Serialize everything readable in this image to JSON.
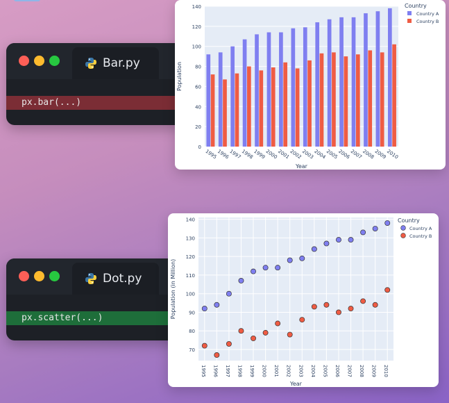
{
  "windows": [
    {
      "tab_title": "Bar.py",
      "code": "px.bar(...)",
      "icon": "python-icon"
    },
    {
      "tab_title": "Dot.py",
      "code": "px.scatter(...)",
      "icon": "python-icon"
    }
  ],
  "colors": {
    "country_a": "#7f7ff0",
    "country_b": "#ef5c44",
    "plot_bg": "#e5ecf6",
    "code_red_bg": "#7b2d35",
    "code_green_bg": "#1e6e3a"
  },
  "chart_data": [
    {
      "type": "bar",
      "title": "",
      "xlabel": "Year",
      "ylabel": "Population",
      "legend_title": "Country",
      "legend_position": "right",
      "categories": [
        "1995",
        "1996",
        "1997",
        "1998",
        "1999",
        "2000",
        "2001",
        "2002",
        "2003",
        "2004",
        "2005",
        "2006",
        "2007",
        "2008",
        "2009",
        "2010"
      ],
      "series": [
        {
          "name": "Country A",
          "values": [
            92,
            94,
            100,
            107,
            112,
            114,
            114,
            118,
            119,
            124,
            127,
            129,
            129,
            133,
            135,
            138
          ]
        },
        {
          "name": "Country B",
          "values": [
            72,
            67,
            73,
            80,
            76,
            79,
            84,
            78,
            86,
            93,
            94,
            90,
            92,
            96,
            94,
            102
          ]
        }
      ],
      "ylim": [
        0,
        140
      ],
      "yticks": [
        0,
        20,
        40,
        60,
        80,
        100,
        120,
        140
      ],
      "grid": true
    },
    {
      "type": "scatter",
      "title": "",
      "xlabel": "Year",
      "ylabel": "Population (in Million)",
      "legend_title": "Country",
      "legend_position": "right",
      "categories": [
        "1995",
        "1996",
        "1997",
        "1998",
        "1999",
        "2000",
        "2001",
        "2002",
        "2003",
        "2004",
        "2005",
        "2006",
        "2007",
        "2008",
        "2009",
        "2010"
      ],
      "series": [
        {
          "name": "Country A",
          "values": [
            92,
            94,
            100,
            107,
            112,
            114,
            114,
            118,
            119,
            124,
            127,
            129,
            129,
            133,
            135,
            138
          ]
        },
        {
          "name": "Country B",
          "values": [
            72,
            67,
            73,
            80,
            76,
            79,
            84,
            78,
            86,
            93,
            94,
            90,
            92,
            96,
            94,
            102
          ]
        }
      ],
      "ylim": [
        64,
        141
      ],
      "yticks": [
        70,
        80,
        90,
        100,
        110,
        120,
        130,
        140
      ],
      "grid": true
    }
  ]
}
